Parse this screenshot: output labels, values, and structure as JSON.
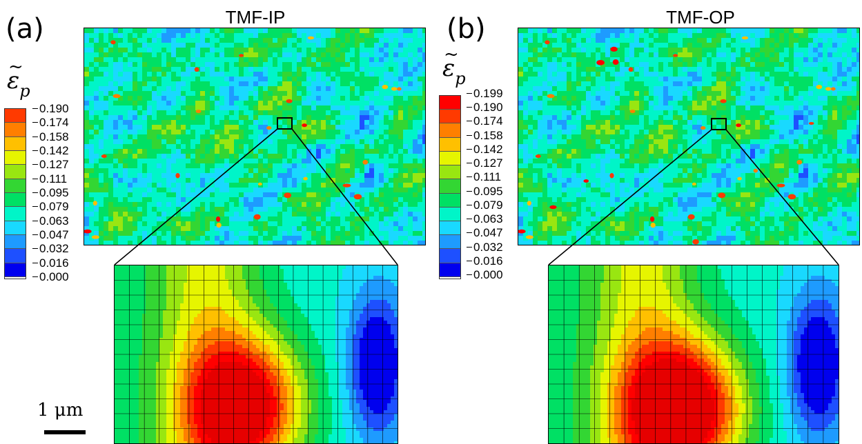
{
  "panels": [
    {
      "id": "a",
      "label": "(a)",
      "title": "TMF-IP",
      "colorbar": {
        "ticks": [
          "0.190",
          "0.174",
          "0.158",
          "0.142",
          "0.127",
          "0.111",
          "0.095",
          "0.079",
          "0.063",
          "0.047",
          "0.032",
          "0.016",
          "0.000"
        ]
      },
      "hotspot": [
        0.46,
        0.78
      ]
    },
    {
      "id": "b",
      "label": "(b)",
      "title": "TMF-OP",
      "colorbar": {
        "ticks": [
          "0.199",
          "0.190",
          "0.174",
          "0.158",
          "0.142",
          "0.127",
          "0.111",
          "0.095",
          "0.079",
          "0.063",
          "0.047",
          "0.032",
          "0.016",
          "0.000"
        ]
      },
      "hotspot": [
        0.46,
        0.8
      ]
    }
  ],
  "colorbar_symbol": {
    "base": "ε",
    "subscript": "p",
    "accent": "~"
  },
  "colors": [
    "#0000ee",
    "#1e50ff",
    "#1e9bff",
    "#19d9ff",
    "#00f5c8",
    "#00e064",
    "#33d633",
    "#99e611",
    "#e6f500",
    "#ffc000",
    "#ff7f00",
    "#ff3a00",
    "#ff0000",
    "#e60000"
  ],
  "scale_bar": {
    "text": "1 μm"
  }
}
